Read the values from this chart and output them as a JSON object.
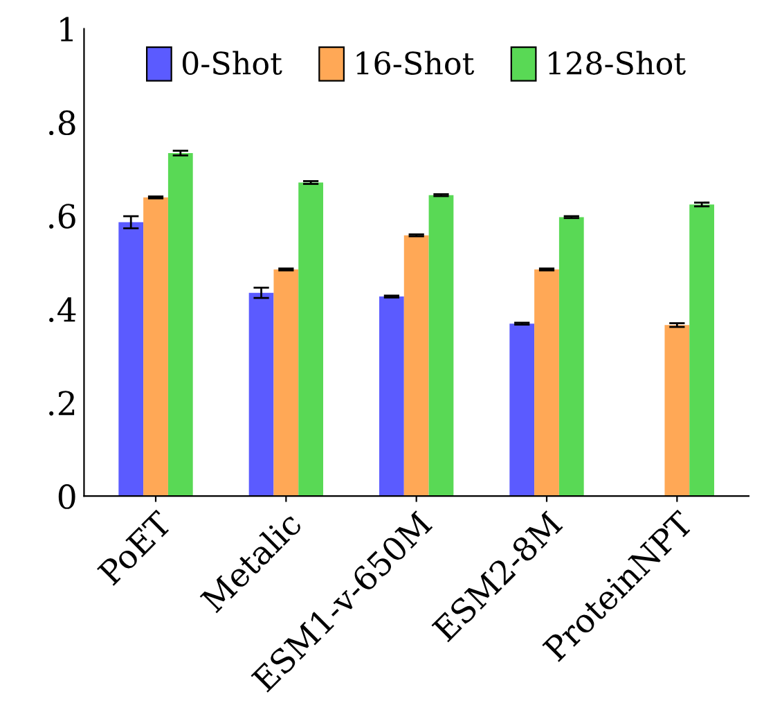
{
  "chart_data": {
    "type": "bar",
    "categories": [
      "PoET",
      "Metalic",
      "ESM1-v-650M",
      "ESM2-8M",
      "ProteinNPT"
    ],
    "series": [
      {
        "name": "0-Shot",
        "color": "#5b5bff",
        "values": [
          0.586,
          0.435,
          0.427,
          0.369,
          null
        ],
        "errors": [
          0.013,
          0.011,
          0.002,
          0.002,
          null
        ]
      },
      {
        "name": "16-Shot",
        "color": "#ffa856",
        "values": [
          0.639,
          0.485,
          0.558,
          0.485,
          0.366
        ],
        "errors": [
          0.002,
          0.002,
          0.002,
          0.002,
          0.004
        ]
      },
      {
        "name": "128-Shot",
        "color": "#59d955",
        "values": [
          0.734,
          0.671,
          0.644,
          0.597,
          0.624
        ],
        "errors": [
          0.005,
          0.003,
          0.002,
          0.002,
          0.004
        ]
      }
    ],
    "ylim": [
      0,
      1
    ],
    "yticks": [
      0,
      {
        "value": 0.2,
        "label": ".2"
      },
      {
        "value": 0.4,
        "label": ".4"
      },
      {
        "value": 0.6,
        "label": ".6"
      },
      {
        "value": 0.8,
        "label": ".8"
      },
      1
    ],
    "grid": false,
    "legend": "top"
  }
}
